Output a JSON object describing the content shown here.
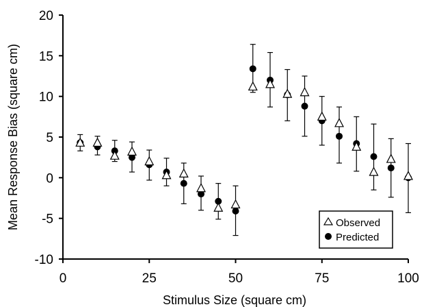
{
  "chart_data": {
    "type": "scatter",
    "xlabel": "Stimulus Size (square cm)",
    "ylabel": "Mean Response Bias (square cm)",
    "xlim": [
      0,
      100
    ],
    "ylim": [
      -10,
      20
    ],
    "xticks": [
      "0",
      "25",
      "50",
      "75",
      "100"
    ],
    "yticks": [
      "-10",
      "-5",
      "0",
      "5",
      "10",
      "15",
      "20"
    ],
    "grid": false,
    "legend": "bottom-right",
    "series": [
      {
        "name": "Observed",
        "marker": "open-triangle",
        "x": [
          5,
          10,
          15,
          20,
          25,
          30,
          35,
          40,
          45,
          50,
          55,
          60,
          65,
          70,
          75,
          80,
          85,
          90,
          95,
          100
        ],
        "y": [
          4.3,
          4.3,
          2.7,
          3.2,
          2.0,
          0.3,
          0.5,
          -1.3,
          -3.7,
          -3.3,
          11.2,
          11.5,
          10.3,
          10.5,
          7.5,
          6.7,
          3.8,
          0.7,
          2.3,
          0.2
        ]
      },
      {
        "name": "Predicted",
        "marker": "filled-circle",
        "x": [
          5,
          10,
          15,
          20,
          25,
          30,
          35,
          40,
          45,
          50,
          55,
          60,
          65,
          70,
          75,
          80,
          85,
          90,
          95,
          100
        ],
        "y": [
          4.3,
          3.8,
          3.3,
          2.5,
          1.6,
          0.7,
          -0.7,
          -2.0,
          -2.9,
          -4.1,
          13.4,
          12.0,
          10.2,
          8.8,
          7.0,
          5.1,
          4.2,
          2.6,
          1.2,
          0.0
        ],
        "err_low": [
          3.3,
          2.8,
          2.0,
          0.7,
          -0.3,
          -1.0,
          -3.2,
          -4.0,
          -5.1,
          -7.1,
          10.5,
          8.7,
          7.0,
          5.1,
          4.0,
          1.8,
          0.8,
          -1.5,
          -2.4,
          -4.3
        ],
        "err_high": [
          5.3,
          5.1,
          4.6,
          4.4,
          3.4,
          2.4,
          1.8,
          0.2,
          -0.7,
          -1.0,
          16.4,
          15.4,
          13.3,
          12.5,
          10.0,
          8.7,
          7.5,
          6.6,
          4.8,
          4.2
        ]
      }
    ]
  }
}
